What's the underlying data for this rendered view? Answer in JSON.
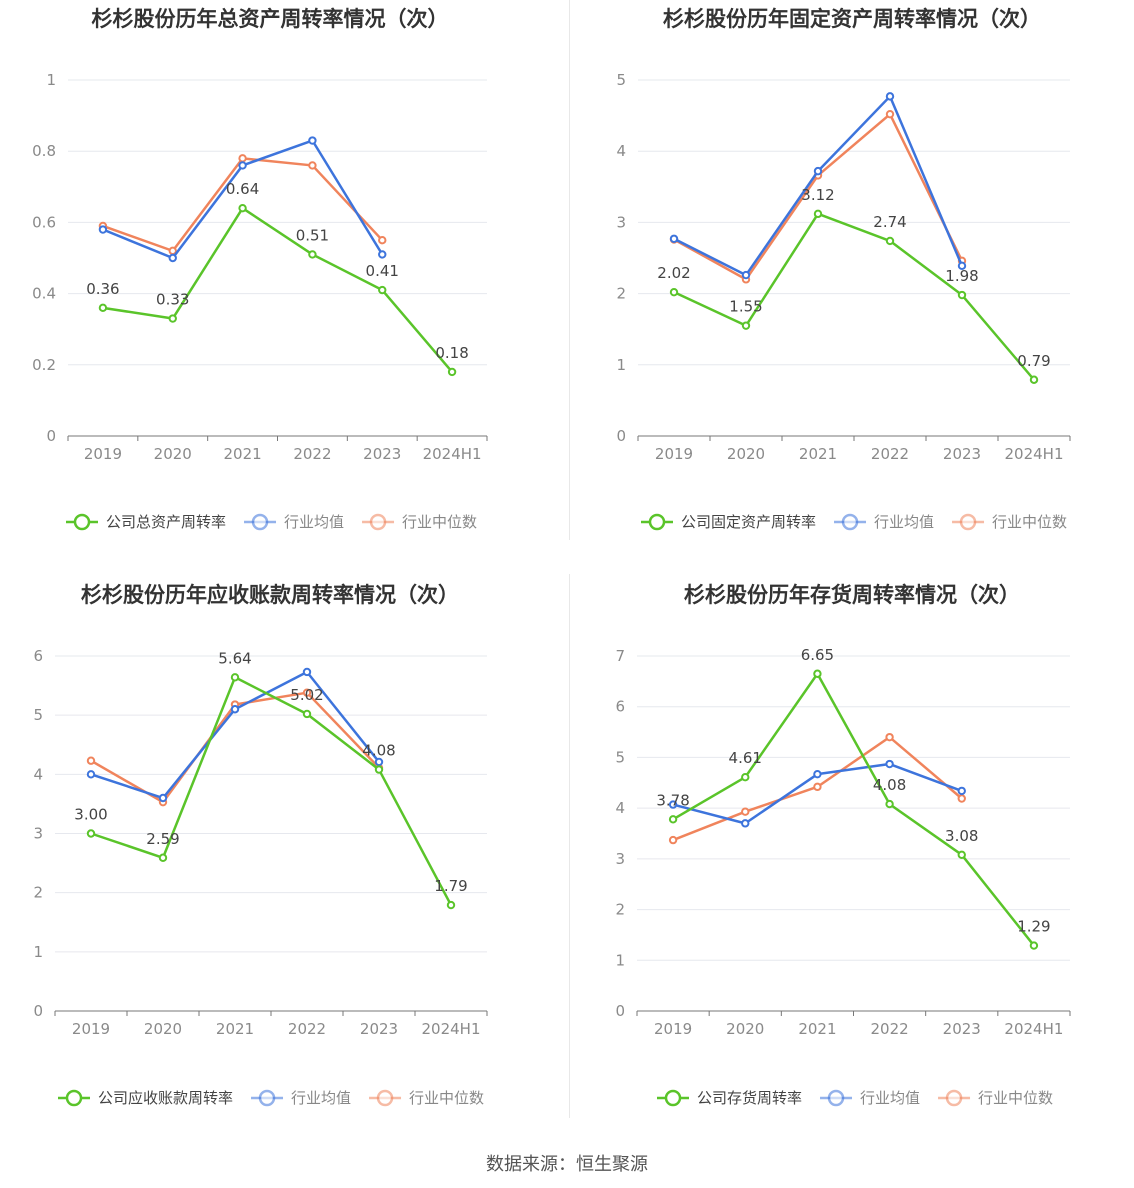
{
  "source_text": "数据来源：恒生聚源",
  "colors": {
    "company": "#5ac42a",
    "avg": "#3d74dc",
    "median": "#f0845c"
  },
  "chart_data": [
    {
      "type": "line",
      "title": "杉杉股份历年总资产周转率情况（次）",
      "categories": [
        "2019",
        "2020",
        "2021",
        "2022",
        "2023",
        "2024H1"
      ],
      "ylim": [
        0,
        1
      ],
      "yticks": [
        0,
        0.2,
        0.4,
        0.6,
        0.8,
        1
      ],
      "yticklabels": [
        "0",
        "0.2",
        "0.4",
        "0.6",
        "0.8",
        "1"
      ],
      "grid": true,
      "legend": "bottom",
      "series": [
        {
          "name": "公司总资产周转率",
          "values": [
            0.36,
            0.33,
            0.64,
            0.51,
            0.41,
            0.18
          ],
          "labels": [
            "0.36",
            "0.33",
            "0.64",
            "0.51",
            "0.41",
            "0.18"
          ]
        },
        {
          "name": "行业均值",
          "values": [
            0.58,
            0.5,
            0.76,
            0.83,
            0.51,
            null
          ]
        },
        {
          "name": "行业中位数",
          "values": [
            0.59,
            0.52,
            0.78,
            0.76,
            0.55,
            null
          ]
        }
      ]
    },
    {
      "type": "line",
      "title": "杉杉股份历年固定资产周转率情况（次）",
      "categories": [
        "2019",
        "2020",
        "2021",
        "2022",
        "2023",
        "2024H1"
      ],
      "ylim": [
        0,
        5
      ],
      "yticks": [
        0,
        1,
        2,
        3,
        4,
        5
      ],
      "yticklabels": [
        "0",
        "1",
        "2",
        "3",
        "4",
        "5"
      ],
      "grid": true,
      "legend": "bottom",
      "series": [
        {
          "name": "公司固定资产周转率",
          "values": [
            2.02,
            1.55,
            3.12,
            2.74,
            1.98,
            0.79
          ],
          "labels": [
            "2.02",
            "1.55",
            "3.12",
            "2.74",
            "1.98",
            "0.79"
          ]
        },
        {
          "name": "行业均值",
          "values": [
            2.77,
            2.26,
            3.72,
            4.77,
            2.39,
            null
          ]
        },
        {
          "name": "行业中位数",
          "values": [
            2.76,
            2.2,
            3.66,
            4.52,
            2.46,
            null
          ]
        }
      ]
    },
    {
      "type": "line",
      "title": "杉杉股份历年应收账款周转率情况（次）",
      "categories": [
        "2019",
        "2020",
        "2021",
        "2022",
        "2023",
        "2024H1"
      ],
      "ylim": [
        0,
        6
      ],
      "yticks": [
        0,
        1,
        2,
        3,
        4,
        5,
        6
      ],
      "yticklabels": [
        "0",
        "1",
        "2",
        "3",
        "4",
        "5",
        "6"
      ],
      "grid": true,
      "legend": "bottom",
      "series": [
        {
          "name": "公司应收账款周转率",
          "values": [
            3.0,
            2.59,
            5.64,
            5.02,
            4.08,
            1.79
          ],
          "labels": [
            "3.00",
            "2.59",
            "5.64",
            "5.02",
            "4.08",
            "1.79"
          ]
        },
        {
          "name": "行业均值",
          "values": [
            4.0,
            3.6,
            5.1,
            5.73,
            4.21,
            null
          ]
        },
        {
          "name": "行业中位数",
          "values": [
            4.23,
            3.53,
            5.18,
            5.38,
            4.11,
            null
          ]
        }
      ]
    },
    {
      "type": "line",
      "title": "杉杉股份历年存货周转率情况（次）",
      "categories": [
        "2019",
        "2020",
        "2021",
        "2022",
        "2023",
        "2024H1"
      ],
      "ylim": [
        0,
        7
      ],
      "yticks": [
        0,
        1,
        2,
        3,
        4,
        5,
        6,
        7
      ],
      "yticklabels": [
        "0",
        "1",
        "2",
        "3",
        "4",
        "5",
        "6",
        "7"
      ],
      "grid": true,
      "legend": "bottom",
      "series": [
        {
          "name": "公司存货周转率",
          "values": [
            3.78,
            4.61,
            6.65,
            4.08,
            3.08,
            1.29
          ],
          "labels": [
            "3.78",
            "4.61",
            "6.65",
            "4.08",
            "3.08",
            "1.29"
          ]
        },
        {
          "name": "行业均值",
          "values": [
            4.07,
            3.7,
            4.67,
            4.87,
            4.34,
            null
          ]
        },
        {
          "name": "行业中位数",
          "values": [
            3.37,
            3.93,
            4.42,
            5.4,
            4.19,
            null
          ]
        }
      ]
    }
  ]
}
